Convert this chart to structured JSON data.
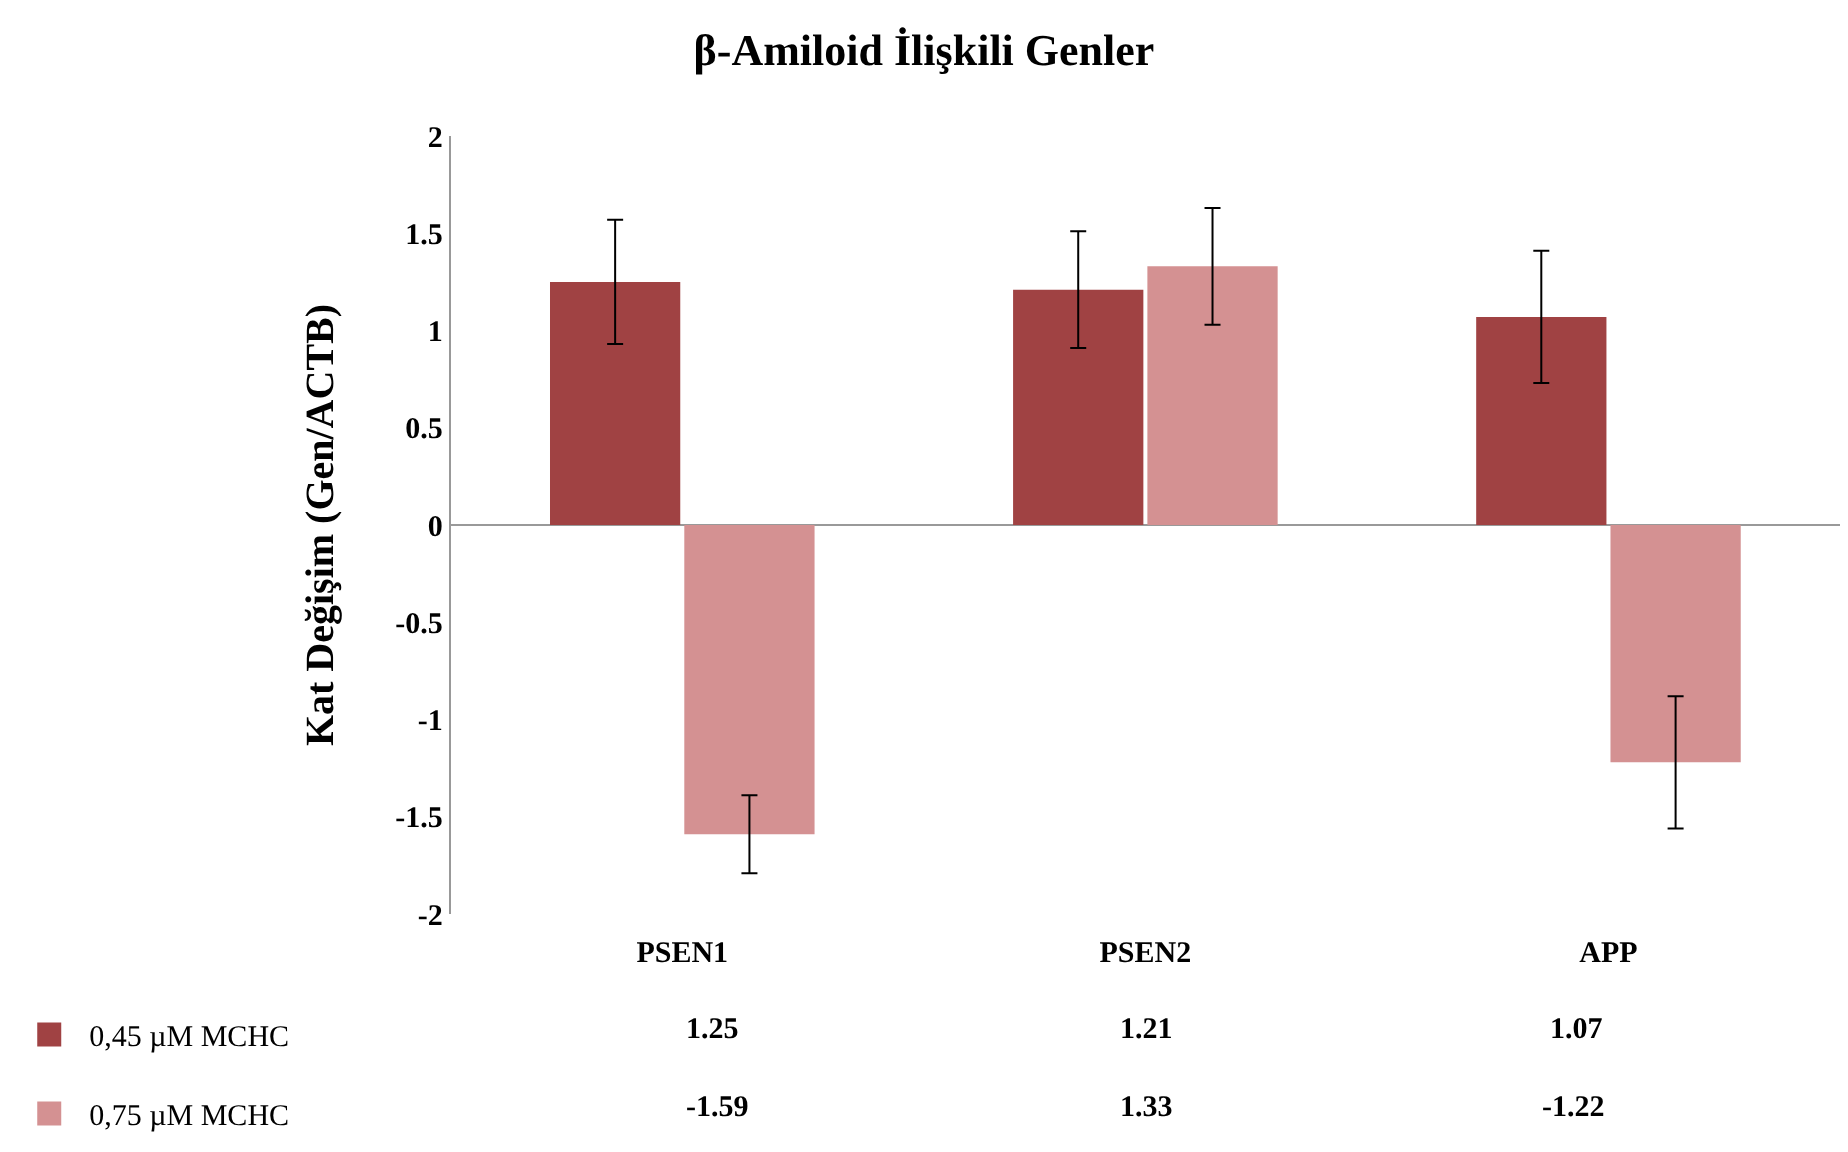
{
  "chart_data": {
    "type": "bar",
    "title": "β-Amiloid İlişkili Genler",
    "ylabel": "Kat Değişim (Gen/ACTB)",
    "categories": [
      "PSEN1",
      "PSEN2",
      "APP"
    ],
    "series": [
      {
        "name": "0,45 µM MCHC",
        "color": "#a04243",
        "values": [
          1.25,
          1.21,
          1.07
        ],
        "errors": [
          0.32,
          0.3,
          0.34
        ]
      },
      {
        "name": "0,75 µM MCHC",
        "color": "#d49192",
        "values": [
          -1.59,
          1.33,
          -1.22
        ],
        "errors": [
          0.2,
          0.3,
          0.34
        ]
      }
    ],
    "ylim": [
      -2,
      2
    ],
    "yticks": [
      2,
      1.5,
      1,
      0.5,
      0,
      -0.5,
      -1,
      -1.5,
      -2
    ],
    "ref_lines": [
      {
        "axis": "y",
        "value": 0,
        "color": "#999999",
        "line_style": "solid"
      }
    ],
    "grid": false,
    "legend": "bottom left",
    "data_labels": true
  }
}
